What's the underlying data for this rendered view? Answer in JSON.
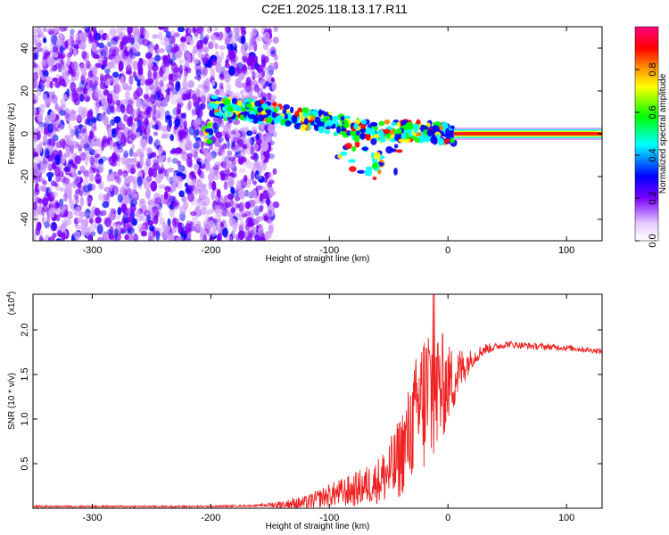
{
  "title": "C2E1.2025.118.13.17.R11",
  "chart_data": [
    {
      "type": "heatmap",
      "xlabel": "Height of straight line (km)",
      "ylabel": "Frequency (Hz)",
      "xlim": [
        -350,
        130
      ],
      "ylim": [
        -50,
        50
      ],
      "xticks": [
        -300,
        -200,
        -100,
        0,
        100
      ],
      "yticks": [
        -40,
        -20,
        0,
        20,
        40
      ],
      "colorbar": {
        "label": "Normalized spectral amplitude",
        "range": [
          0,
          1
        ],
        "ticks": [
          "0.0",
          "0.2",
          "0.4",
          "0.6",
          "0.8"
        ],
        "colormap": [
          "#ffffff",
          "#cc99ff",
          "#7a00ff",
          "#0000ff",
          "#00ffff",
          "#00ff00",
          "#ffff00",
          "#ff8000",
          "#ff0000",
          "#ff0080"
        ]
      },
      "features": {
        "noise_region_x": [
          -350,
          -145
        ],
        "signal_track": [
          {
            "x": -200,
            "f": 13
          },
          {
            "x": -175,
            "f": 11
          },
          {
            "x": -150,
            "f": 10
          },
          {
            "x": -125,
            "f": 7
          },
          {
            "x": -100,
            "f": 5
          },
          {
            "x": -75,
            "f": 2
          },
          {
            "x": -50,
            "f": 1
          },
          {
            "x": -25,
            "f": 1
          },
          {
            "x": 0,
            "f": 0
          },
          {
            "x": 130,
            "f": 0
          }
        ],
        "steady_line_start_x": 5
      }
    },
    {
      "type": "line",
      "xlabel": "Height of straight line (km)",
      "ylabel": "SNR (10 * v/v)",
      "scale_label": "(x10",
      "scale_exp": "4",
      "scale_close": ")",
      "xlim": [
        -350,
        130
      ],
      "ylim": [
        0,
        2.4
      ],
      "xticks": [
        -300,
        -200,
        -100,
        0,
        100
      ],
      "yticks": [
        0.5,
        1.0,
        1.5,
        2.0
      ],
      "series": [
        {
          "color": "#ee2222",
          "envelope": [
            {
              "x": -350,
              "y": 0.02
            },
            {
              "x": -200,
              "y": 0.02
            },
            {
              "x": -160,
              "y": 0.03
            },
            {
              "x": -120,
              "y": 0.06
            },
            {
              "x": -100,
              "y": 0.15
            },
            {
              "x": -80,
              "y": 0.2
            },
            {
              "x": -60,
              "y": 0.3
            },
            {
              "x": -45,
              "y": 0.45
            },
            {
              "x": -35,
              "y": 0.75
            },
            {
              "x": -25,
              "y": 1.1
            },
            {
              "x": -15,
              "y": 1.3
            },
            {
              "x": -5,
              "y": 1.35
            },
            {
              "x": 5,
              "y": 1.45
            },
            {
              "x": 15,
              "y": 1.62
            },
            {
              "x": 30,
              "y": 1.78
            },
            {
              "x": 50,
              "y": 1.84
            },
            {
              "x": 70,
              "y": 1.82
            },
            {
              "x": 100,
              "y": 1.8
            },
            {
              "x": 130,
              "y": 1.76
            }
          ],
          "noise": [
            {
              "x": -350,
              "amp": 0.01
            },
            {
              "x": -160,
              "amp": 0.01
            },
            {
              "x": -110,
              "amp": 0.1
            },
            {
              "x": -60,
              "amp": 0.25
            },
            {
              "x": -30,
              "amp": 0.6
            },
            {
              "x": -15,
              "amp": 1.0
            },
            {
              "x": 0,
              "amp": 0.45
            },
            {
              "x": 20,
              "amp": 0.1
            },
            {
              "x": 40,
              "amp": 0.04
            },
            {
              "x": 130,
              "amp": 0.03
            }
          ]
        }
      ]
    }
  ]
}
